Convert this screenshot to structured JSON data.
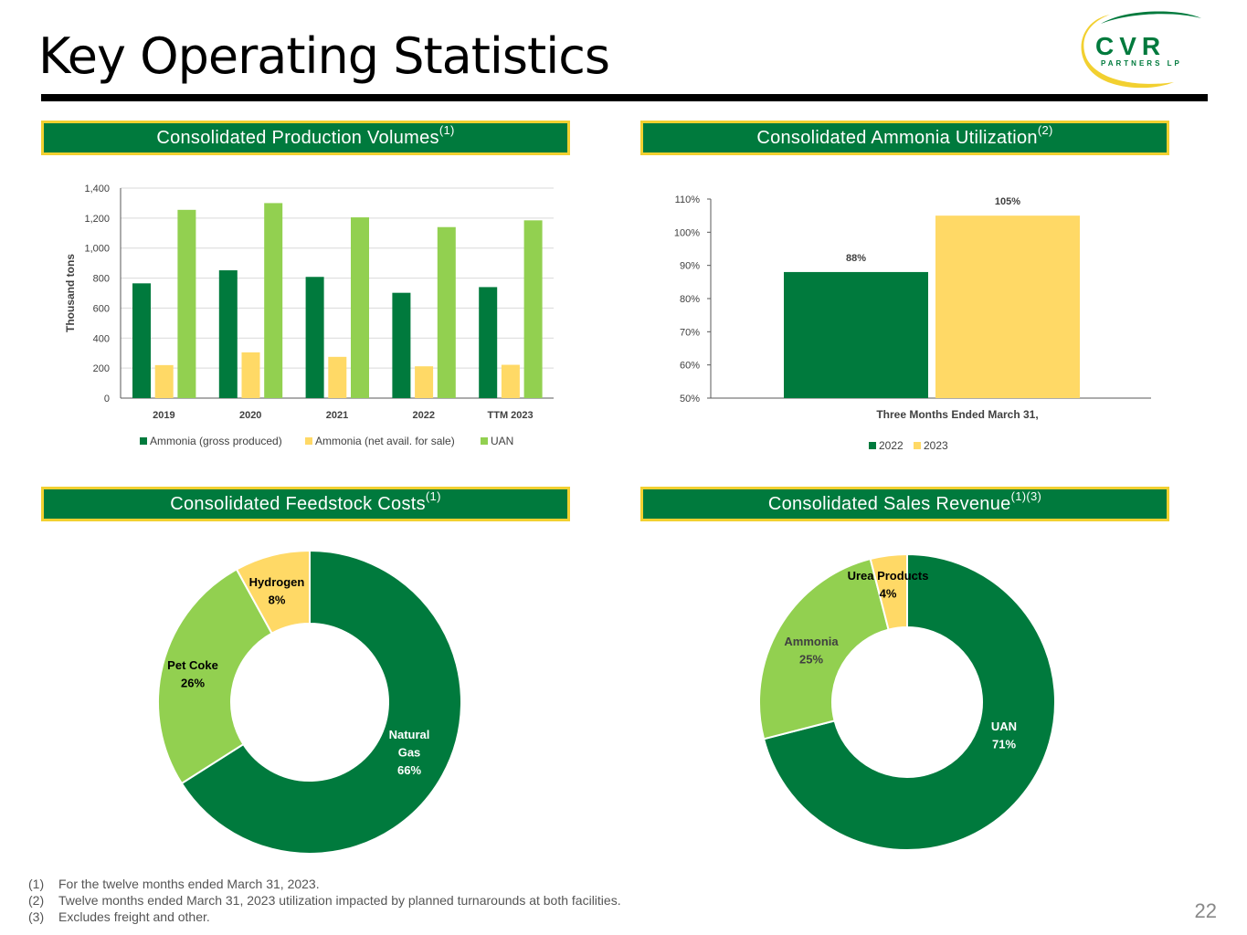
{
  "page": {
    "title": "Key Operating Statistics",
    "page_number": "22"
  },
  "logo": {
    "name": "CVR",
    "sub": "PARTNERS LP",
    "colors": {
      "green": "#007A3D",
      "yellow": "#F2D030"
    }
  },
  "colors": {
    "dark_green": "#007A3D",
    "light_green": "#92D050",
    "yellow": "#FFD966",
    "header_border": "#F2D030"
  },
  "headers": {
    "production": {
      "text": "Consolidated Production Volumes",
      "note": "(1)"
    },
    "utilization": {
      "text": "Consolidated Ammonia Utilization",
      "note": "(2)"
    },
    "feedstock": {
      "text": "Consolidated Feedstock Costs",
      "note": "(1)"
    },
    "revenue": {
      "text": "Consolidated Sales Revenue",
      "note": "(1)(3)"
    }
  },
  "chart_data": [
    {
      "id": "production",
      "type": "bar",
      "title": "Consolidated Production Volumes",
      "ylabel": "Thousand tons",
      "xlabel": "",
      "ylim": [
        0,
        1400
      ],
      "yticks": [
        "0",
        "200",
        "400",
        "600",
        "800",
        "1,000",
        "1,200",
        "1,400"
      ],
      "grid": true,
      "legend": "bottom",
      "categories": [
        "2019",
        "2020",
        "2021",
        "2022",
        "TTM 2023"
      ],
      "series": [
        {
          "name": "Ammonia (gross produced)",
          "color": "#007A3D",
          "values": [
            765,
            852,
            808,
            702,
            740
          ]
        },
        {
          "name": "Ammonia (net avail. for sale)",
          "color": "#FFD966",
          "values": [
            220,
            305,
            275,
            212,
            222
          ]
        },
        {
          "name": "UAN",
          "color": "#92D050",
          "values": [
            1255,
            1300,
            1205,
            1140,
            1185
          ]
        }
      ]
    },
    {
      "id": "utilization",
      "type": "bar",
      "title": "Consolidated Ammonia Utilization",
      "xlabel": "Three Months Ended March 31,",
      "ylim": [
        50,
        110
      ],
      "yticks": [
        "50%",
        "60%",
        "70%",
        "80%",
        "90%",
        "100%",
        "110%"
      ],
      "grid": false,
      "legend": "bottom",
      "categories": [
        "Three Months Ended March 31,"
      ],
      "series": [
        {
          "name": "2022",
          "color": "#007A3D",
          "values": [
            88
          ],
          "label": "88%"
        },
        {
          "name": "2023",
          "color": "#FFD966",
          "values": [
            105
          ],
          "label": "105%"
        }
      ]
    },
    {
      "id": "feedstock",
      "type": "pie",
      "title": "Consolidated Feedstock Costs",
      "slices": [
        {
          "name": "Natural Gas",
          "value": 66,
          "label_lines": [
            "Natural",
            "Gas",
            "66%"
          ],
          "color": "#007A3D",
          "text_color": "#ffffff"
        },
        {
          "name": "Pet Coke",
          "value": 26,
          "label_lines": [
            "Pet Coke",
            "26%"
          ],
          "color": "#92D050",
          "text_color": "#000000"
        },
        {
          "name": "Hydrogen",
          "value": 8,
          "label_lines": [
            "Hydrogen",
            "8%"
          ],
          "color": "#FFD966",
          "text_color": "#000000"
        }
      ]
    },
    {
      "id": "revenue",
      "type": "pie",
      "title": "Consolidated Sales Revenue",
      "slices": [
        {
          "name": "UAN",
          "value": 71,
          "label_lines": [
            "UAN",
            "71%"
          ],
          "color": "#007A3D",
          "text_color": "#ffffff"
        },
        {
          "name": "Ammonia",
          "value": 25,
          "label_lines": [
            "Ammonia",
            "25%"
          ],
          "color": "#92D050",
          "text_color": "#404040"
        },
        {
          "name": "Urea Products",
          "value": 4,
          "label_lines": [
            "Urea Products",
            "4%"
          ],
          "color": "#FFD966",
          "text_color": "#000000"
        }
      ]
    }
  ],
  "footnotes": [
    {
      "num": "(1)",
      "text": "For the twelve months ended March 31, 2023."
    },
    {
      "num": "(2)",
      "text": "Twelve months ended March 31, 2023 utilization impacted by planned turnarounds at both facilities."
    },
    {
      "num": "(3)",
      "text": "Excludes freight and other."
    }
  ]
}
